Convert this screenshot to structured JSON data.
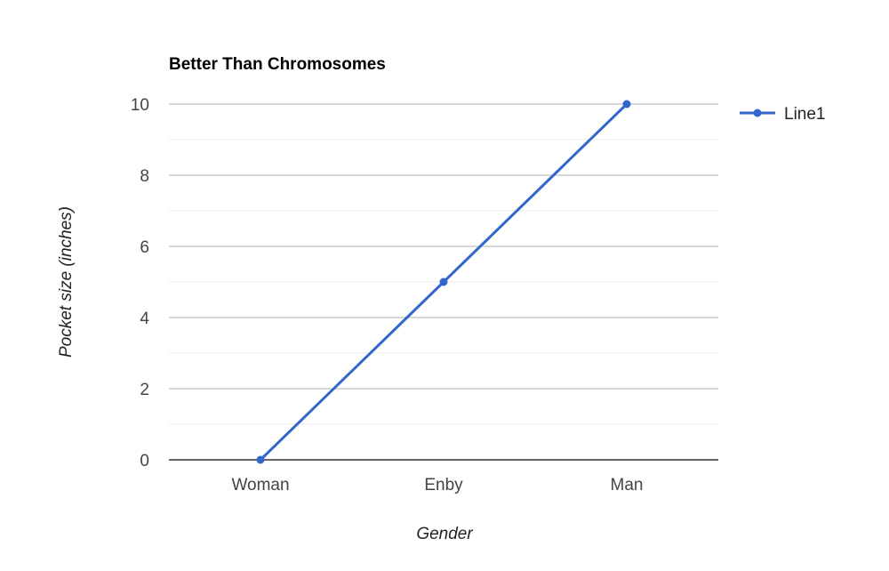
{
  "chart_data": {
    "type": "line",
    "title": "Better Than Chromosomes",
    "xlabel": "Gender",
    "ylabel": "Pocket size (inches)",
    "categories": [
      "Woman",
      "Enby",
      "Man"
    ],
    "series": [
      {
        "name": "Line1",
        "values": [
          0,
          5,
          10
        ],
        "color": "#3366cc"
      }
    ],
    "ylim": [
      0,
      10
    ],
    "yticks": [
      0,
      2,
      4,
      6,
      8,
      10
    ],
    "grid": true,
    "legend": "right"
  }
}
